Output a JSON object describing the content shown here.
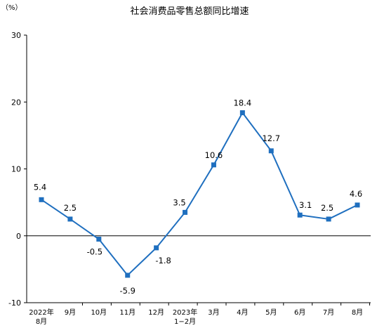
{
  "chart_data": {
    "type": "line",
    "title": "社会消费品零售总额同比增速",
    "unit_label": "（%）",
    "xlabel": "",
    "ylabel": "",
    "ylim": [
      -10,
      30
    ],
    "yticks": [
      "30",
      "20",
      "10",
      "0",
      "-10"
    ],
    "grid": false,
    "categories": [
      [
        "2022年",
        "8月"
      ],
      [
        "9月"
      ],
      [
        "10月"
      ],
      [
        "11月"
      ],
      [
        "12月"
      ],
      [
        "2023年",
        "1−2月"
      ],
      [
        "3月"
      ],
      [
        "4月"
      ],
      [
        "5月"
      ],
      [
        "6月"
      ],
      [
        "7月"
      ],
      [
        "8月"
      ]
    ],
    "values": [
      5.4,
      2.5,
      -0.5,
      -5.9,
      -1.8,
      3.5,
      10.6,
      18.4,
      12.7,
      3.1,
      2.5,
      4.6
    ],
    "data_labels": [
      "5.4",
      "2.5",
      "-0.5",
      "-5.9",
      "-1.8",
      "3.5",
      "10.6",
      "18.4",
      "12.7",
      "3.1",
      "2.5",
      "4.6"
    ],
    "series_color": "#1f6fbf",
    "axis_color": "#000000"
  }
}
